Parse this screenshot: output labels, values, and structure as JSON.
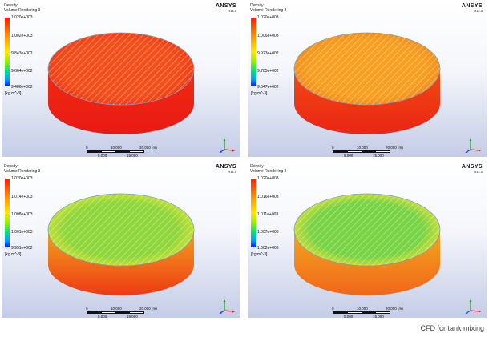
{
  "panels": [
    {
      "legend": {
        "line1": "Density",
        "line2": "Volume Rendering 3",
        "labels": [
          "1.020e+003",
          "1.002e+003",
          "9.843e+002",
          "9.664e+002",
          "9.486e+002"
        ],
        "unit": "[kg m^-3]"
      },
      "colors": {
        "top": "#f24f1a",
        "top_edge": "#ee3a16",
        "side_top": "#f22a12",
        "side_bottom": "#e81a14"
      }
    },
    {
      "legend": {
        "line1": "Density",
        "line2": "Volume Rendering 3",
        "labels": [
          "1.020e+003",
          "1.006e+003",
          "9.923e+002",
          "9.785e+002",
          "9.647e+002"
        ],
        "unit": "[kg m^-3]"
      },
      "colors": {
        "top": "#f7a020",
        "top_edge": "#f08a1c",
        "side_top": "#f24a14",
        "side_bottom": "#ea2514"
      }
    },
    {
      "legend": {
        "line1": "Density",
        "line2": "Volume Rendering 3",
        "labels": [
          "1.020e+003",
          "1.014e+003",
          "1.008e+003",
          "1.001e+003",
          "9.951e+002"
        ],
        "unit": "[kg m^-3]"
      },
      "colors": {
        "top": "#8fd63a",
        "top_edge": "#d7e534",
        "side_top": "#f2a41e",
        "side_bottom": "#ee3a14"
      }
    },
    {
      "legend": {
        "line1": "Density",
        "line2": "Volume Rendering 3",
        "labels": [
          "1.020e+003",
          "1.016e+003",
          "1.011e+003",
          "1.007e+003",
          "1.002e+003"
        ],
        "unit": "[kg m^-3]"
      },
      "colors": {
        "top": "#78d444",
        "top_edge": "#e7e034",
        "side_top": "#f4a81e",
        "side_bottom": "#f0661a"
      }
    }
  ],
  "brand": {
    "name": "ANSYS",
    "version": "R14.5"
  },
  "scale": {
    "top": [
      "0",
      "10.000",
      "20.000 (m)"
    ],
    "bottom": [
      "5.000",
      "15.000"
    ]
  },
  "caption": "CFD for tank mixing"
}
